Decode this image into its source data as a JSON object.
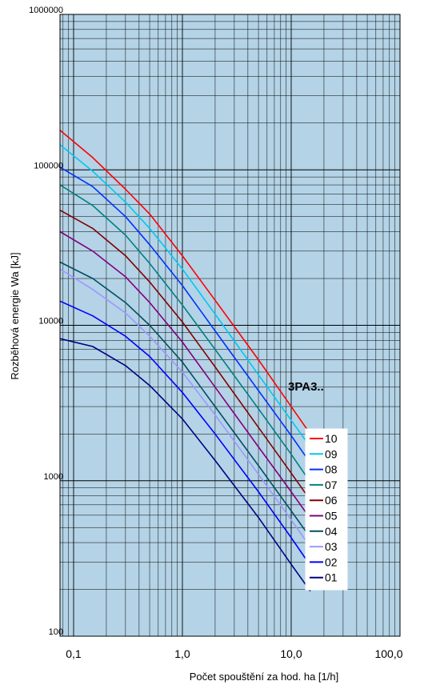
{
  "chart_data": {
    "type": "line",
    "title": "",
    "xlabel": "Počet spouštění za hod.  ha [1/h]",
    "ylabel": "Rozběhová energie   Wa [kJ]",
    "xscale": "log",
    "yscale": "log",
    "xlim": [
      0.075,
      100
    ],
    "ylim": [
      100,
      1000000
    ],
    "x_ticks": [
      0.1,
      1,
      10,
      100
    ],
    "x_tick_labels": [
      "0,1",
      "1,0",
      "10,0",
      "100,0"
    ],
    "y_ticks": [
      100,
      1000,
      10000,
      100000,
      1000000
    ],
    "y_tick_labels": [
      "100",
      "1000",
      "10000",
      "100000",
      "1000000"
    ],
    "grid": true,
    "plot_background": "#b4d3e6",
    "annotation": "3PA3..",
    "legend_position": "bottom-right",
    "series": [
      {
        "name": "10",
        "color": "#ff0000",
        "x": [
          0.075,
          0.15,
          0.3,
          0.5,
          1,
          2,
          5,
          10,
          15
        ],
        "y": [
          180000,
          120000,
          75000,
          52000,
          28000,
          14500,
          6000,
          3000,
          2000
        ]
      },
      {
        "name": "09",
        "color": "#00c8f0",
        "x": [
          0.075,
          0.15,
          0.3,
          0.5,
          1,
          2,
          5,
          10,
          15
        ],
        "y": [
          145000,
          98000,
          62000,
          42000,
          23000,
          11800,
          4800,
          2450,
          1650
        ]
      },
      {
        "name": "08",
        "color": "#0033ff",
        "x": [
          0.075,
          0.15,
          0.3,
          0.5,
          1,
          2,
          5,
          10,
          15
        ],
        "y": [
          104000,
          78000,
          50000,
          33000,
          18000,
          9200,
          3800,
          1950,
          1300
        ]
      },
      {
        "name": "07",
        "color": "#008080",
        "x": [
          0.075,
          0.15,
          0.3,
          0.5,
          1,
          2,
          5,
          10,
          15
        ],
        "y": [
          80000,
          59000,
          38000,
          25000,
          13500,
          7000,
          2900,
          1480,
          980
        ]
      },
      {
        "name": "06",
        "color": "#800000",
        "x": [
          0.075,
          0.15,
          0.3,
          0.5,
          1,
          2,
          5,
          10,
          15
        ],
        "y": [
          55000,
          42000,
          28000,
          19000,
          10500,
          5400,
          2200,
          1120,
          750
        ]
      },
      {
        "name": "05",
        "color": "#800080",
        "x": [
          0.075,
          0.15,
          0.3,
          0.5,
          1,
          2,
          5,
          10,
          15
        ],
        "y": [
          40000,
          30000,
          20500,
          14000,
          7800,
          4000,
          1650,
          850,
          570
        ]
      },
      {
        "name": "04",
        "color": "#004f66",
        "x": [
          0.075,
          0.15,
          0.3,
          0.5,
          1,
          2,
          5,
          10,
          15
        ],
        "y": [
          25500,
          20000,
          14000,
          10000,
          5800,
          3000,
          1250,
          640,
          430
        ]
      },
      {
        "name": "03",
        "color": "#9999ff",
        "x": [
          0.075,
          0.15,
          0.3,
          0.5,
          1,
          2,
          5,
          10,
          15
        ],
        "y": [
          23000,
          17000,
          12000,
          8500,
          5000,
          2650,
          1100,
          560,
          375
        ]
      },
      {
        "name": "02",
        "color": "#0000ff",
        "x": [
          0.075,
          0.15,
          0.3,
          0.5,
          1,
          2,
          5,
          10,
          15
        ],
        "y": [
          14300,
          11500,
          8500,
          6300,
          3700,
          2000,
          850,
          430,
          285
        ]
      },
      {
        "name": "01",
        "color": "#000080",
        "x": [
          0.075,
          0.15,
          0.3,
          0.5,
          1,
          2,
          5,
          10,
          15
        ],
        "y": [
          8200,
          7300,
          5500,
          4100,
          2500,
          1350,
          580,
          290,
          195
        ]
      }
    ]
  }
}
